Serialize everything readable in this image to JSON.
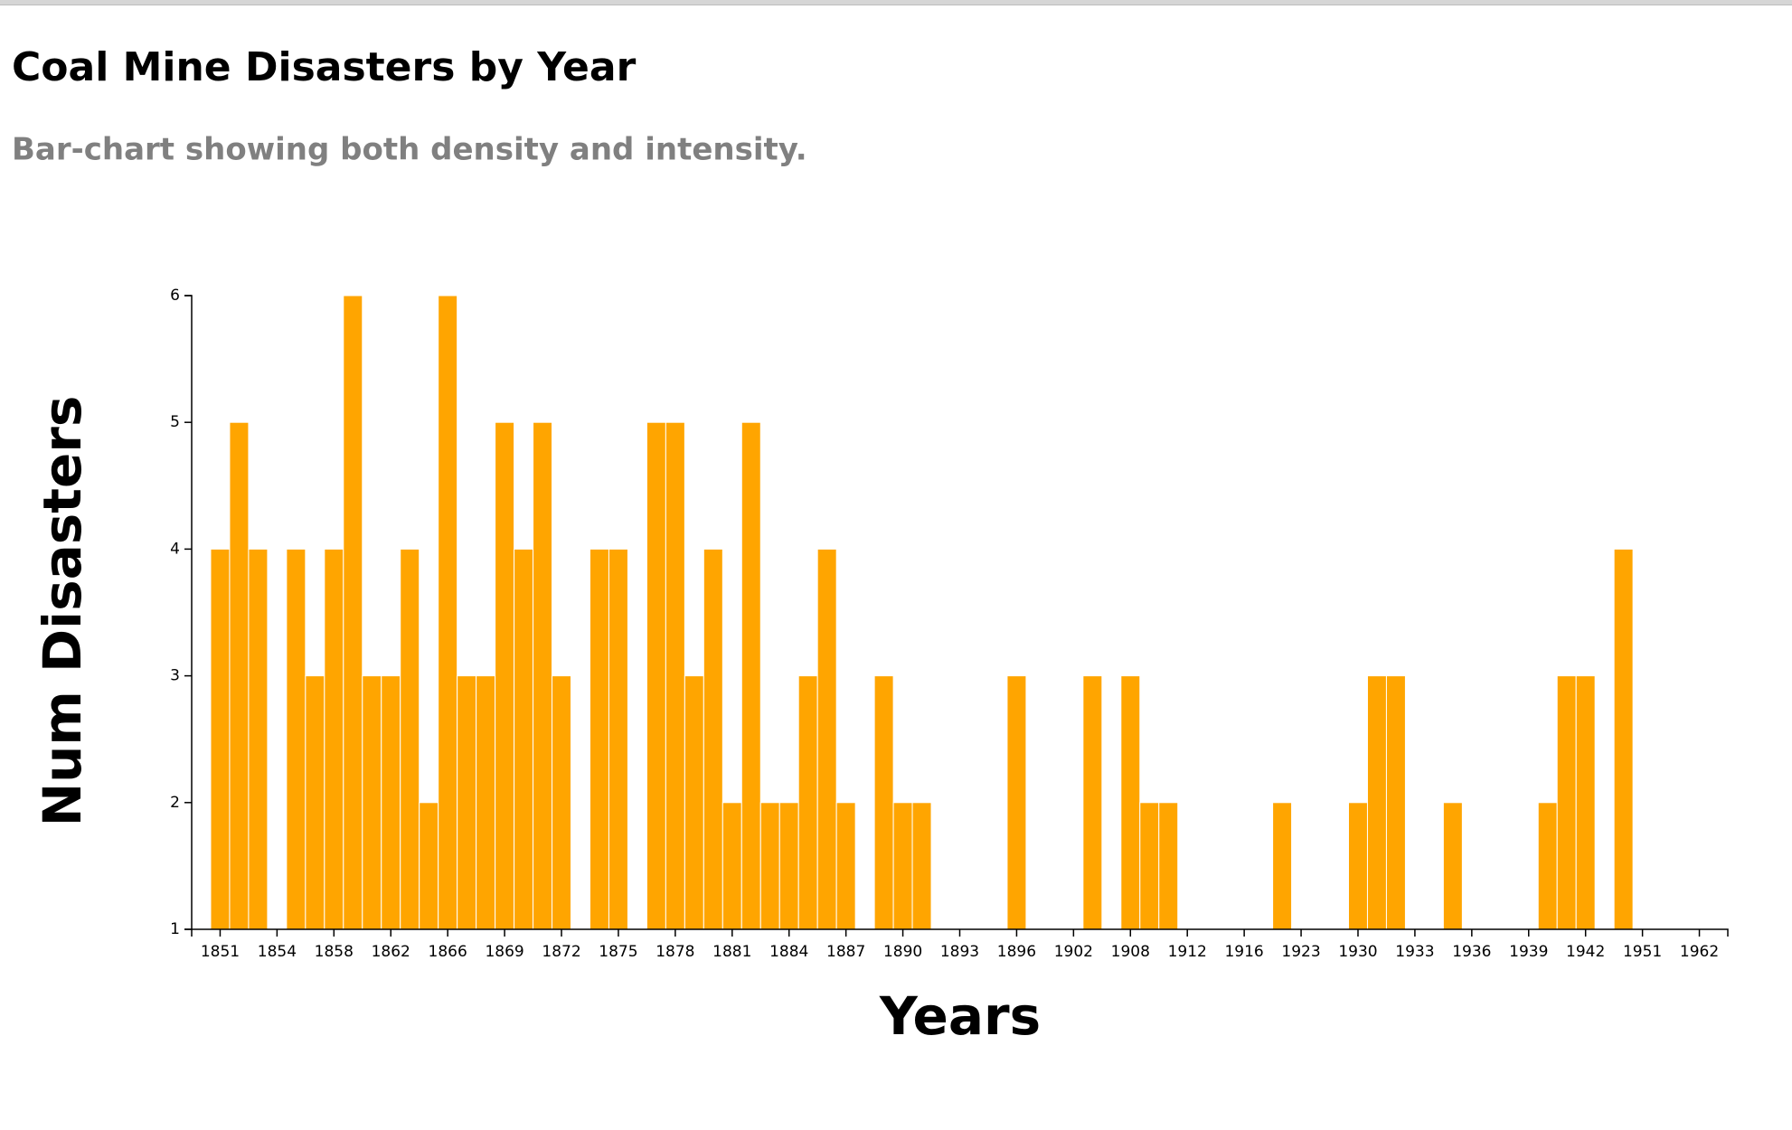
{
  "chart_data": {
    "type": "bar",
    "title": "Coal Mine Disasters by Year",
    "subtitle": "Bar-chart showing both density and intensity.",
    "x_label": "Years",
    "y_label": "Num Disasters",
    "color": "#FFA500",
    "categories": [
      null,
      "1851",
      null,
      null,
      "1854",
      null,
      null,
      "1858",
      null,
      null,
      "1862",
      null,
      null,
      "1866",
      null,
      null,
      "1869",
      null,
      null,
      "1872",
      null,
      null,
      "1875",
      null,
      null,
      "1878",
      null,
      null,
      "1881",
      null,
      null,
      "1884",
      null,
      null,
      "1887",
      null,
      null,
      "1890",
      null,
      null,
      "1893",
      null,
      null,
      "1896",
      null,
      null,
      "1902",
      null,
      null,
      "1908",
      null,
      null,
      "1912",
      null,
      null,
      "1916",
      null,
      null,
      "1923",
      null,
      null,
      "1930",
      null,
      null,
      "1933",
      null,
      null,
      "1936",
      null,
      null,
      "1939",
      null,
      null,
      "1942",
      null,
      null,
      "1951",
      null,
      null,
      "1962",
      null
    ],
    "values": [
      null,
      4,
      5,
      4,
      null,
      4,
      3,
      4,
      6,
      3,
      3,
      4,
      2,
      6,
      3,
      3,
      5,
      4,
      5,
      3,
      null,
      4,
      4,
      null,
      5,
      5,
      3,
      4,
      2,
      5,
      2,
      2,
      3,
      4,
      2,
      null,
      3,
      2,
      2,
      null,
      null,
      null,
      null,
      3,
      null,
      null,
      null,
      3,
      null,
      3,
      2,
      2,
      null,
      null,
      null,
      null,
      null,
      2,
      null,
      null,
      null,
      2,
      3,
      3,
      null,
      null,
      2,
      null,
      null,
      null,
      null,
      2,
      3,
      3,
      null,
      4,
      null,
      null,
      null,
      null,
      null
    ],
    "ylim": [
      1,
      6
    ],
    "yticks": [
      1,
      2,
      3,
      4,
      5,
      6
    ]
  }
}
